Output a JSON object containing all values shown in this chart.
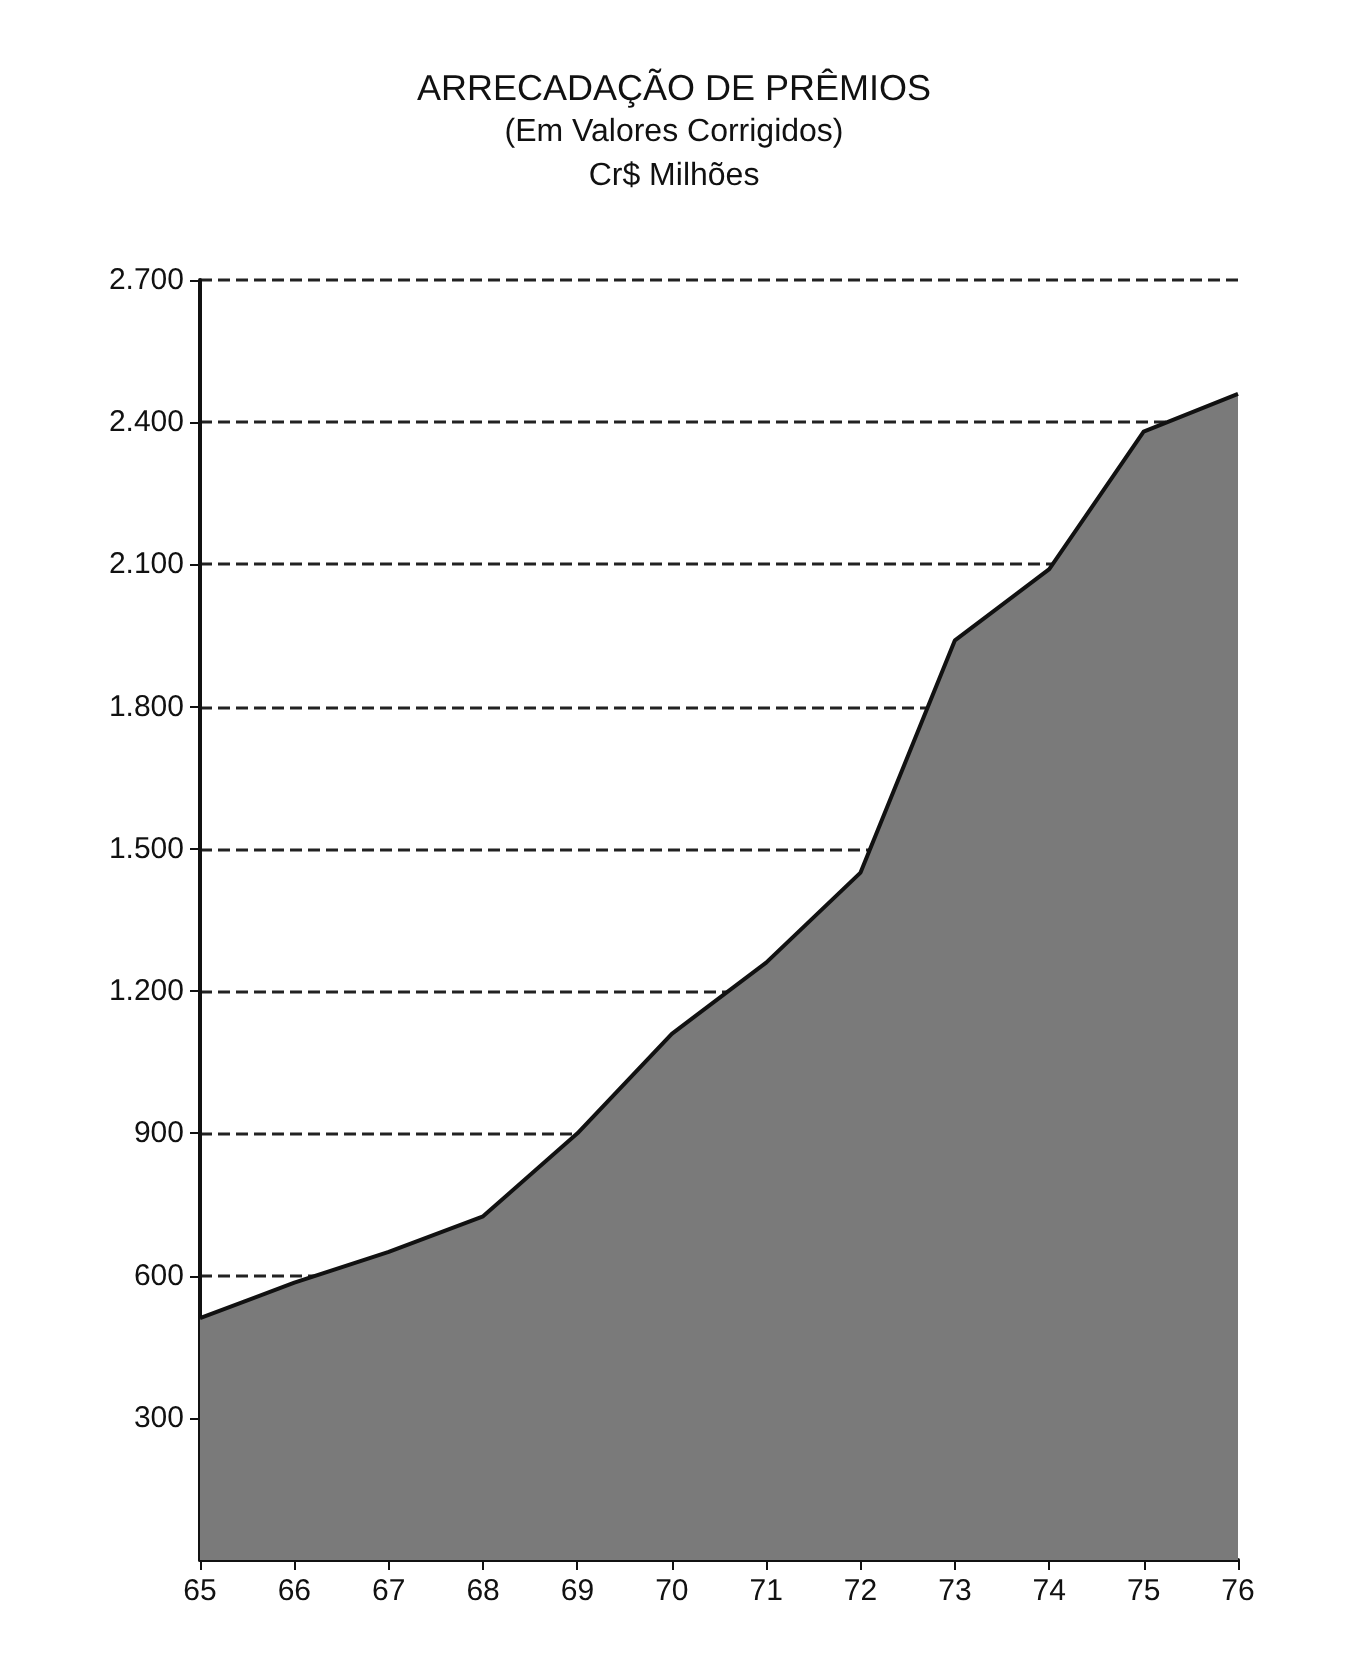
{
  "chart_data": {
    "type": "area",
    "title": "ARRECADAÇÃO DE PRÊMIOS",
    "subtitle": "(Em Valores Corrigidos)\nCr$ Milhões",
    "categories": [
      "65",
      "66",
      "67",
      "68",
      "69",
      "70",
      "71",
      "72",
      "73",
      "74",
      "75",
      "76"
    ],
    "series": [
      {
        "color": "#7a7a7a",
        "values": [
          510,
          585,
          650,
          725,
          900,
          1110,
          1260,
          1450,
          1940,
          2090,
          2380,
          2460
        ]
      }
    ],
    "ylim": [
      0,
      2700
    ],
    "yticks": [
      {
        "value": 300,
        "label": "300"
      },
      {
        "value": 600,
        "label": "600"
      },
      {
        "value": 900,
        "label": "900"
      },
      {
        "value": 1200,
        "label": "1.200"
      },
      {
        "value": 1500,
        "label": "1.500"
      },
      {
        "value": 1800,
        "label": "1.800"
      },
      {
        "value": 2100,
        "label": "2.100"
      },
      {
        "value": 2400,
        "label": "2.400"
      },
      {
        "value": 2700,
        "label": "2.700"
      }
    ],
    "grid": "y",
    "line_style": "dashed"
  }
}
